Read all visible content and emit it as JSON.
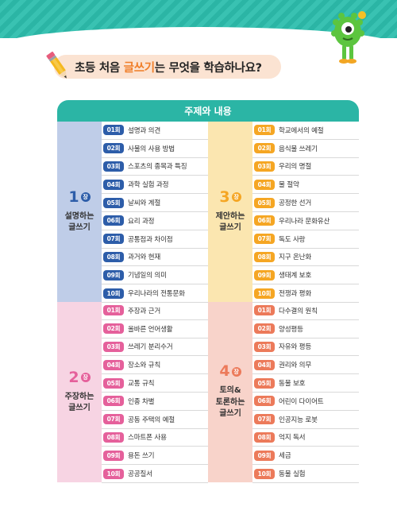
{
  "heading": {
    "before": "초등 처음 ",
    "highlight": "글쓰기",
    "after": "는 무엇을 학습하나요?"
  },
  "table_header": "주제와 내용",
  "colors": {
    "teal": "#2bb5a5",
    "ch1_bg": "#bfcde8",
    "ch1_tag": "#2d5da9",
    "ch2_bg": "#f7d4e3",
    "ch2_tag": "#e5609b",
    "ch3_bg": "#fbe6b0",
    "ch3_tag": "#f5a623",
    "ch4_bg": "#f8d3ca",
    "ch4_tag": "#ec7a5a"
  },
  "chapters": [
    {
      "num": "1",
      "badge": "장",
      "title_lines": [
        "설명하는",
        "글쓰기"
      ],
      "items": [
        {
          "tag": "01회",
          "label": "설명과 의견"
        },
        {
          "tag": "02회",
          "label": "사물의 사용 방법"
        },
        {
          "tag": "03회",
          "label": "스포츠의 종목과 특징"
        },
        {
          "tag": "04회",
          "label": "과학 실험 과정"
        },
        {
          "tag": "05회",
          "label": "날씨와 계절"
        },
        {
          "tag": "06회",
          "label": "요리 과정"
        },
        {
          "tag": "07회",
          "label": "공통점과 차이점"
        },
        {
          "tag": "08회",
          "label": "과거와 현재"
        },
        {
          "tag": "09회",
          "label": "기념일의 의미"
        },
        {
          "tag": "10회",
          "label": "우리나라의 전통문화"
        }
      ]
    },
    {
      "num": "2",
      "badge": "장",
      "title_lines": [
        "주장하는",
        "글쓰기"
      ],
      "items": [
        {
          "tag": "01회",
          "label": "주장과 근거"
        },
        {
          "tag": "02회",
          "label": "올바른 언어생활"
        },
        {
          "tag": "03회",
          "label": "쓰레기 분리수거"
        },
        {
          "tag": "04회",
          "label": "장소와 규칙"
        },
        {
          "tag": "05회",
          "label": "교통 규칙"
        },
        {
          "tag": "06회",
          "label": "인종 차별"
        },
        {
          "tag": "07회",
          "label": "공동 주택의 예절"
        },
        {
          "tag": "08회",
          "label": "스마트폰 사용"
        },
        {
          "tag": "09회",
          "label": "용돈 쓰기"
        },
        {
          "tag": "10회",
          "label": "공공질서"
        }
      ]
    },
    {
      "num": "3",
      "badge": "장",
      "title_lines": [
        "제안하는",
        "글쓰기"
      ],
      "items": [
        {
          "tag": "01회",
          "label": "학교에서의 예절"
        },
        {
          "tag": "02회",
          "label": "음식물 쓰레기"
        },
        {
          "tag": "03회",
          "label": "우리의 명절"
        },
        {
          "tag": "04회",
          "label": "물 절약"
        },
        {
          "tag": "05회",
          "label": "공정한 선거"
        },
        {
          "tag": "06회",
          "label": "우리나라 문화유산"
        },
        {
          "tag": "07회",
          "label": "독도 사랑"
        },
        {
          "tag": "08회",
          "label": "지구 온난화"
        },
        {
          "tag": "09회",
          "label": "생태계 보호"
        },
        {
          "tag": "10회",
          "label": "전쟁과 평화"
        }
      ]
    },
    {
      "num": "4",
      "badge": "장",
      "title_lines": [
        "토의&",
        "토론하는",
        "글쓰기"
      ],
      "items": [
        {
          "tag": "01회",
          "label": "다수결의 원칙"
        },
        {
          "tag": "02회",
          "label": "양성평등"
        },
        {
          "tag": "03회",
          "label": "자유와 평등"
        },
        {
          "tag": "04회",
          "label": "권리와 의무"
        },
        {
          "tag": "05회",
          "label": "동물 보호"
        },
        {
          "tag": "06회",
          "label": "어린이 다이어트"
        },
        {
          "tag": "07회",
          "label": "인공지능 로봇"
        },
        {
          "tag": "08회",
          "label": "억지 독서"
        },
        {
          "tag": "09회",
          "label": "세금"
        },
        {
          "tag": "10회",
          "label": "동물 실험"
        }
      ]
    }
  ]
}
